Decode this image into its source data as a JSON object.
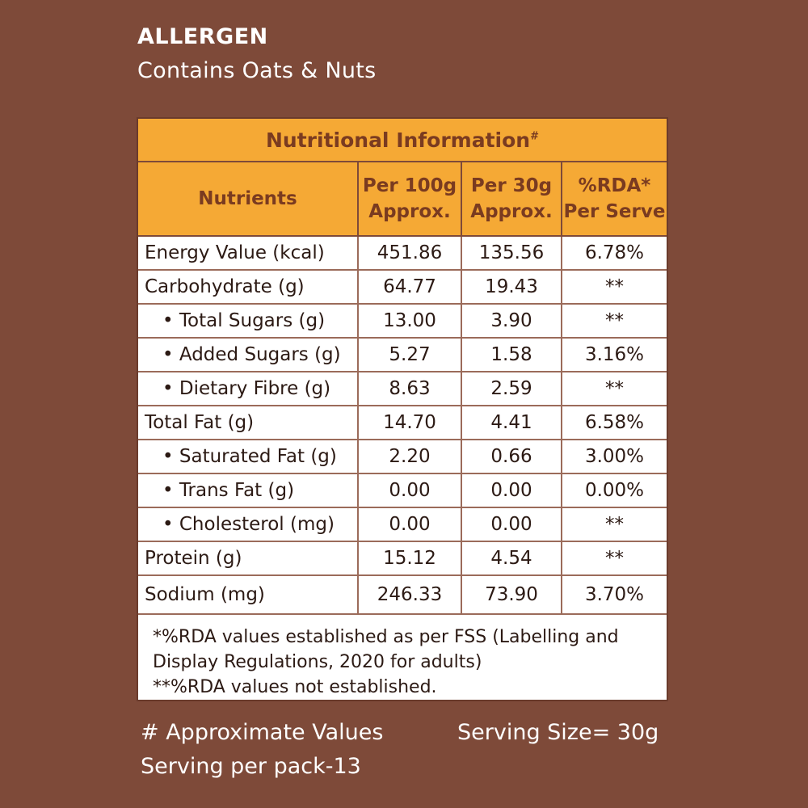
{
  "allergen": {
    "title": "ALLERGEN",
    "text": "Contains Oats & Nuts"
  },
  "table": {
    "title": "Nutritional Information",
    "title_mark": "#",
    "headers": [
      {
        "line1": "Nutrients",
        "line2": ""
      },
      {
        "line1": "Per 100g",
        "line2": "Approx."
      },
      {
        "line1": "Per 30g",
        "line2": "Approx."
      },
      {
        "line1": "%RDA*",
        "line2": "Per Serve"
      }
    ],
    "rows": [
      {
        "nutrient": "Energy Value (kcal)",
        "per100": "451.86",
        "per30": "135.56",
        "rda": "6.78%",
        "sub": false
      },
      {
        "nutrient": "Carbohydrate (g)",
        "per100": "64.77",
        "per30": "19.43",
        "rda": "**",
        "sub": false
      },
      {
        "nutrient": "• Total Sugars (g)",
        "per100": "13.00",
        "per30": "3.90",
        "rda": "**",
        "sub": true
      },
      {
        "nutrient": "• Added Sugars (g)",
        "per100": "5.27",
        "per30": "1.58",
        "rda": "3.16%",
        "sub": true
      },
      {
        "nutrient": "• Dietary Fibre (g)",
        "per100": "8.63",
        "per30": "2.59",
        "rda": "**",
        "sub": true
      },
      {
        "nutrient": "Total Fat (g)",
        "per100": "14.70",
        "per30": "4.41",
        "rda": "6.58%",
        "sub": false
      },
      {
        "nutrient": "• Saturated Fat (g)",
        "per100": "2.20",
        "per30": "0.66",
        "rda": "3.00%",
        "sub": true
      },
      {
        "nutrient": "• Trans Fat (g)",
        "per100": "0.00",
        "per30": "0.00",
        "rda": "0.00%",
        "sub": true
      },
      {
        "nutrient": "• Cholesterol (mg)",
        "per100": "0.00",
        "per30": "0.00",
        "rda": "**",
        "sub": true
      },
      {
        "nutrient": "Protein (g)",
        "per100": "15.12",
        "per30": "4.54",
        "rda": "**",
        "sub": false
      },
      {
        "nutrient": "Sodium (mg)",
        "per100": "246.33",
        "per30": "73.90",
        "rda": "3.70%",
        "sub": false
      }
    ],
    "footnotes": [
      "*%RDA values established as per FSS (Labelling and Display Regulations, 2020 for adults)",
      "**%RDA values not established."
    ]
  },
  "bottom": {
    "approx_note": "# Approximate Values",
    "serving_per_pack": "Serving per pack-13",
    "serving_size": "Serving Size= 30g"
  },
  "colors": {
    "background": "#7e4a39",
    "header_fill": "#f5a935",
    "header_text": "#7a3b20"
  }
}
